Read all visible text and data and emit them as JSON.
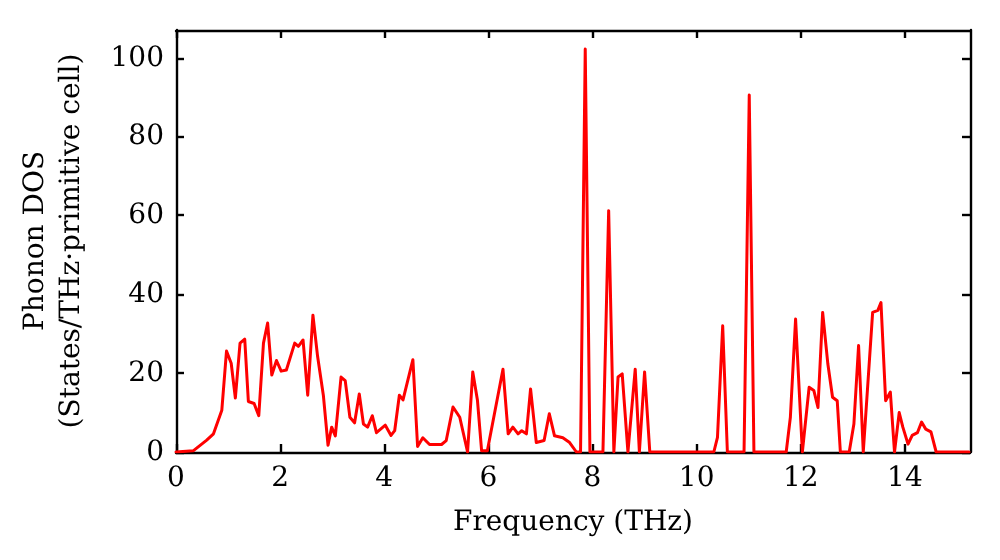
{
  "chart_data": {
    "type": "line",
    "xlabel": "Frequency (THz)",
    "ylabel": "Phonon DOS\n(States/THz·primitive cell)",
    "xlim": [
      0,
      15.25
    ],
    "ylim": [
      0,
      107
    ],
    "xticks": [
      0,
      2,
      4,
      6,
      8,
      10,
      12,
      14
    ],
    "yticks": [
      0,
      20,
      40,
      60,
      80,
      100
    ],
    "grid": false,
    "marker": "none",
    "line_style": "solid",
    "series": [
      {
        "color": "#ff0000",
        "x": [
          0,
          0.33,
          0.59,
          0.72,
          0.88,
          0.97,
          1.06,
          1.14,
          1.23,
          1.32,
          1.39,
          1.5,
          1.59,
          1.68,
          1.76,
          1.84,
          1.93,
          2.02,
          2.12,
          2.28,
          2.35,
          2.44,
          2.53,
          2.63,
          2.72,
          2.83,
          2.92,
          2.99,
          3.06,
          3.17,
          3.25,
          3.34,
          3.43,
          3.52,
          3.6,
          3.68,
          3.77,
          3.85,
          4.02,
          4.13,
          4.2,
          4.29,
          4.36,
          4.55,
          4.64,
          4.74,
          4.87,
          5.1,
          5.19,
          5.32,
          5.45,
          5.6,
          5.7,
          5.79,
          5.87,
          5.98,
          6.28,
          6.38,
          6.47,
          6.57,
          6.64,
          6.73,
          6.81,
          6.92,
          7.07,
          7.17,
          7.27,
          7.43,
          7.56,
          7.69,
          7.77,
          7.86,
          7.95,
          8.2,
          8.31,
          8.41,
          8.49,
          8.57,
          8.68,
          8.82,
          8.9,
          9.0,
          9.1,
          10.33,
          10.4,
          10.5,
          10.59,
          10.91,
          11.01,
          11.1,
          11.72,
          11.8,
          11.9,
          12.03,
          12.16,
          12.25,
          12.33,
          12.42,
          12.52,
          12.61,
          12.7,
          12.76,
          12.93,
          13.02,
          13.11,
          13.2,
          13.38,
          13.48,
          13.54,
          13.63,
          13.72,
          13.8,
          13.89,
          13.96,
          14.06,
          14.14,
          14.24,
          14.32,
          14.4,
          14.5,
          14.6,
          15.23
        ],
        "values": [
          0,
          0.3,
          3,
          4.6,
          10.6,
          25.6,
          22.5,
          13.7,
          27.6,
          28.6,
          12.8,
          12.3,
          9.2,
          27.6,
          32.7,
          19.5,
          23.2,
          20.5,
          20.8,
          27.6,
          26.8,
          28.4,
          14.4,
          34.7,
          24.2,
          14.4,
          1.7,
          6.3,
          4.1,
          19,
          18.1,
          8.8,
          7.4,
          14.7,
          7.1,
          6.3,
          9.2,
          4.9,
          6.8,
          4.2,
          5.4,
          14.4,
          13.2,
          23.4,
          1.4,
          3.6,
          1.9,
          1.9,
          2.9,
          11.4,
          8.8,
          0,
          20.3,
          13.1,
          0.3,
          0.3,
          21,
          4.6,
          6.3,
          4.6,
          5.4,
          4.6,
          16,
          2.4,
          2.9,
          9.7,
          4.1,
          3.6,
          2.4,
          0,
          0,
          102.2,
          0,
          0,
          61.2,
          0,
          19,
          19.8,
          0,
          21,
          0,
          20.3,
          0,
          0,
          3.7,
          32,
          0,
          0,
          90.5,
          0,
          0,
          8.8,
          33.7,
          0,
          16.4,
          15.6,
          11.3,
          35.4,
          22.3,
          13.9,
          13,
          0,
          0,
          7.1,
          27,
          0,
          35.4,
          35.9,
          37.9,
          13,
          15.2,
          0,
          10,
          6.3,
          2,
          4.2,
          4.9,
          7.6,
          5.8,
          5.1,
          0,
          0
        ]
      }
    ]
  }
}
